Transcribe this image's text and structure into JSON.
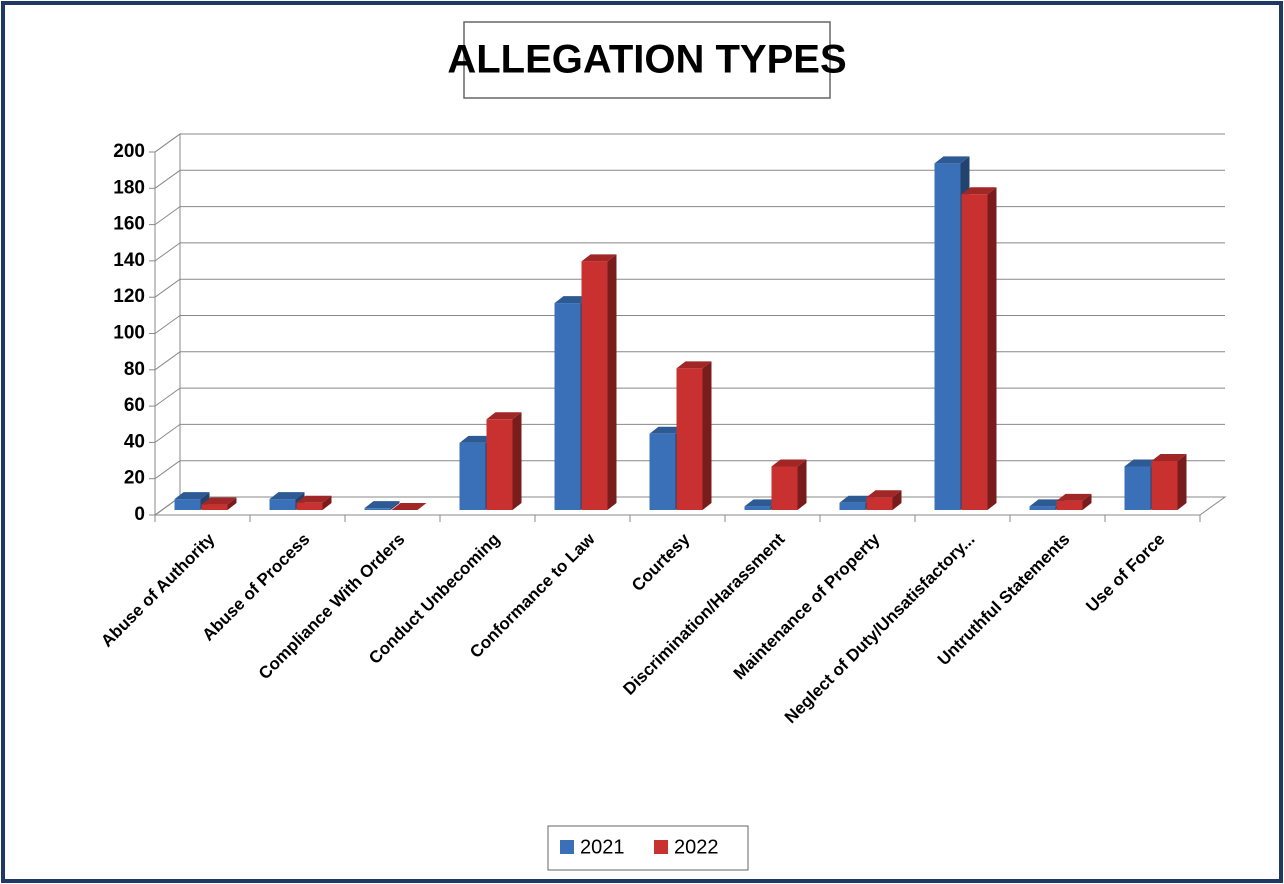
{
  "chart_data": {
    "type": "bar",
    "title": "ALLEGATION TYPES",
    "categories": [
      "Abuse of Authority",
      "Abuse of Process",
      "Compliance With Orders",
      "Conduct Unbecoming",
      "Conformance to Law",
      "Courtesy",
      "Discrimination/Harassment",
      "Maintenance of Property",
      "Neglect of Duty/Unsatisfactory...",
      "Untruthful Statements",
      "Use of Force"
    ],
    "series": [
      {
        "name": "2021",
        "color": "#3a70b8",
        "values": [
          6,
          6,
          1,
          37,
          114,
          42,
          2,
          4,
          191,
          2,
          24
        ]
      },
      {
        "name": "2022",
        "color": "#c8312f",
        "values": [
          3,
          4,
          0,
          50,
          137,
          78,
          24,
          7,
          174,
          5,
          27
        ]
      }
    ],
    "ylim": [
      0,
      200
    ],
    "yticks": [
      0,
      20,
      40,
      60,
      80,
      100,
      120,
      140,
      160,
      180,
      200
    ],
    "grid": true,
    "legend": "bottom"
  }
}
